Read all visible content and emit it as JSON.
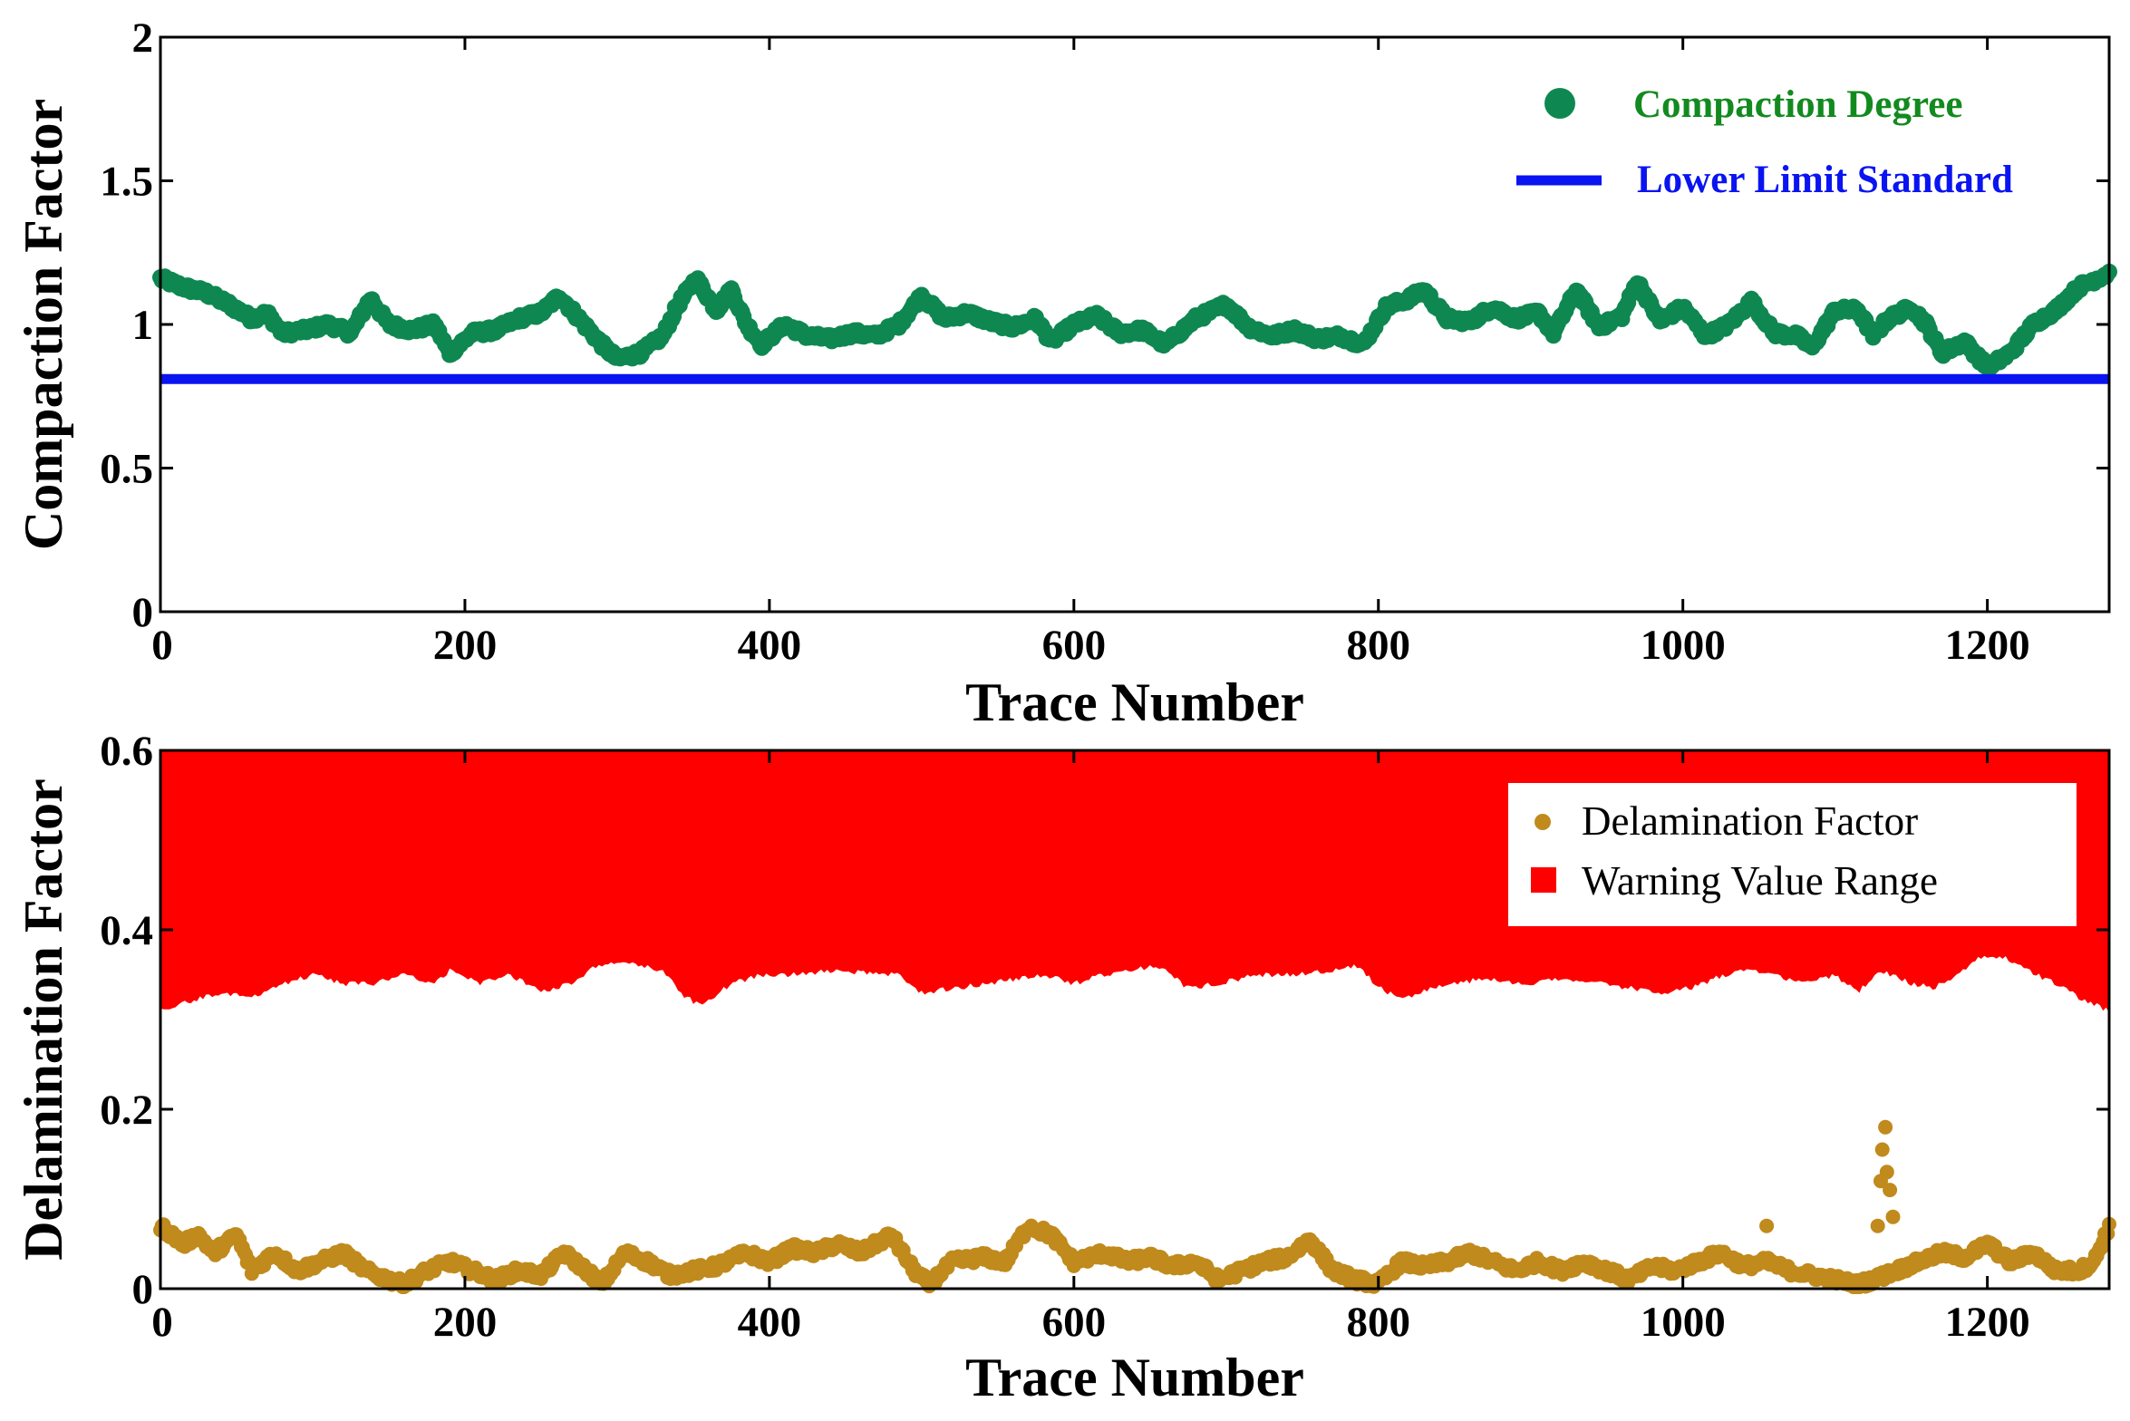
{
  "colors": {
    "compaction": "#0e8850",
    "lower_limit": "#0a14f0",
    "delamination": "#c08a1c",
    "warning": "#ff0000",
    "axis": "#000000",
    "legend_text_compaction": "#138a1f"
  },
  "chart_data": [
    {
      "type": "scatter",
      "title": "",
      "xlabel": "Trace Number",
      "ylabel": "Compaction Factor",
      "xlim": [
        0,
        1280
      ],
      "ylim": [
        0,
        2
      ],
      "xticks": [
        0,
        200,
        400,
        600,
        800,
        1000,
        1200
      ],
      "yticks": [
        0,
        0.5,
        1,
        1.5,
        2
      ],
      "ytick_labels": [
        "0",
        "0.5",
        "1",
        "1.5",
        "2"
      ],
      "legend_position": "top-right",
      "series": [
        {
          "name": "Compaction Degree",
          "kind": "scatter",
          "keypoints": [
            [
              0,
              1.16
            ],
            [
              15,
              1.13
            ],
            [
              30,
              1.11
            ],
            [
              45,
              1.07
            ],
            [
              60,
              1.02
            ],
            [
              70,
              1.04
            ],
            [
              80,
              0.97
            ],
            [
              95,
              0.98
            ],
            [
              110,
              1.0
            ],
            [
              125,
              0.97
            ],
            [
              138,
              1.09
            ],
            [
              150,
              1.0
            ],
            [
              165,
              0.98
            ],
            [
              180,
              1.0
            ],
            [
              190,
              0.9
            ],
            [
              205,
              0.97
            ],
            [
              220,
              0.98
            ],
            [
              235,
              1.02
            ],
            [
              250,
              1.04
            ],
            [
              262,
              1.1
            ],
            [
              275,
              1.02
            ],
            [
              290,
              0.93
            ],
            [
              300,
              0.88
            ],
            [
              315,
              0.9
            ],
            [
              330,
              0.96
            ],
            [
              340,
              1.07
            ],
            [
              352,
              1.16
            ],
            [
              365,
              1.05
            ],
            [
              375,
              1.12
            ],
            [
              385,
              1.0
            ],
            [
              395,
              0.93
            ],
            [
              410,
              1.0
            ],
            [
              425,
              0.96
            ],
            [
              440,
              0.95
            ],
            [
              455,
              0.97
            ],
            [
              470,
              0.96
            ],
            [
              485,
              1.0
            ],
            [
              500,
              1.1
            ],
            [
              515,
              1.02
            ],
            [
              530,
              1.04
            ],
            [
              545,
              1.01
            ],
            [
              560,
              0.99
            ],
            [
              575,
              1.02
            ],
            [
              585,
              0.94
            ],
            [
              600,
              1.0
            ],
            [
              615,
              1.03
            ],
            [
              630,
              0.97
            ],
            [
              645,
              0.98
            ],
            [
              660,
              0.93
            ],
            [
              680,
              1.02
            ],
            [
              700,
              1.07
            ],
            [
              715,
              0.99
            ],
            [
              730,
              0.96
            ],
            [
              745,
              0.98
            ],
            [
              760,
              0.95
            ],
            [
              775,
              0.96
            ],
            [
              790,
              0.93
            ],
            [
              805,
              1.06
            ],
            [
              820,
              1.09
            ],
            [
              830,
              1.12
            ],
            [
              845,
              1.02
            ],
            [
              860,
              1.01
            ],
            [
              875,
              1.06
            ],
            [
              890,
              1.02
            ],
            [
              905,
              1.04
            ],
            [
              915,
              0.97
            ],
            [
              930,
              1.12
            ],
            [
              945,
              0.99
            ],
            [
              960,
              1.03
            ],
            [
              970,
              1.15
            ],
            [
              985,
              1.01
            ],
            [
              1000,
              1.06
            ],
            [
              1015,
              0.96
            ],
            [
              1030,
              1.0
            ],
            [
              1045,
              1.08
            ],
            [
              1060,
              0.97
            ],
            [
              1075,
              0.96
            ],
            [
              1085,
              0.92
            ],
            [
              1100,
              1.05
            ],
            [
              1115,
              1.05
            ],
            [
              1125,
              0.96
            ],
            [
              1135,
              1.02
            ],
            [
              1150,
              1.06
            ],
            [
              1160,
              1.0
            ],
            [
              1170,
              0.9
            ],
            [
              1185,
              0.94
            ],
            [
              1200,
              0.85
            ],
            [
              1215,
              0.9
            ],
            [
              1230,
              1.0
            ],
            [
              1245,
              1.05
            ],
            [
              1260,
              1.13
            ],
            [
              1280,
              1.18
            ]
          ]
        },
        {
          "name": "Lower Limit Standard",
          "kind": "hline",
          "value": 0.81
        }
      ],
      "tick_labels_x": [
        "0",
        "200",
        "400",
        "600",
        "800",
        "1000",
        "1200"
      ]
    },
    {
      "type": "scatter",
      "title": "",
      "xlabel": "Trace Number",
      "ylabel": "Delamination Factor",
      "xlim": [
        0,
        1280
      ],
      "ylim": [
        0,
        0.6
      ],
      "xticks": [
        0,
        200,
        400,
        600,
        800,
        1000,
        1200
      ],
      "yticks": [
        0,
        0.2,
        0.4,
        0.6
      ],
      "ytick_labels": [
        "0",
        "0.2",
        "0.4",
        "0.6"
      ],
      "legend_position": "top-right",
      "series": [
        {
          "name": "Delamination Factor",
          "kind": "scatter",
          "keypoints": [
            [
              0,
              0.07
            ],
            [
              15,
              0.05
            ],
            [
              25,
              0.06
            ],
            [
              35,
              0.04
            ],
            [
              50,
              0.06
            ],
            [
              60,
              0.02
            ],
            [
              75,
              0.04
            ],
            [
              90,
              0.02
            ],
            [
              105,
              0.03
            ],
            [
              120,
              0.04
            ],
            [
              135,
              0.02
            ],
            [
              150,
              0.01
            ],
            [
              160,
              0.005
            ],
            [
              175,
              0.02
            ],
            [
              190,
              0.03
            ],
            [
              205,
              0.02
            ],
            [
              220,
              0.01
            ],
            [
              235,
              0.02
            ],
            [
              250,
              0.015
            ],
            [
              265,
              0.04
            ],
            [
              280,
              0.02
            ],
            [
              290,
              0.005
            ],
            [
              305,
              0.04
            ],
            [
              320,
              0.03
            ],
            [
              335,
              0.015
            ],
            [
              350,
              0.02
            ],
            [
              365,
              0.025
            ],
            [
              385,
              0.04
            ],
            [
              400,
              0.03
            ],
            [
              415,
              0.045
            ],
            [
              430,
              0.04
            ],
            [
              445,
              0.05
            ],
            [
              460,
              0.04
            ],
            [
              480,
              0.06
            ],
            [
              495,
              0.02
            ],
            [
              505,
              0.005
            ],
            [
              520,
              0.03
            ],
            [
              540,
              0.035
            ],
            [
              555,
              0.03
            ],
            [
              570,
              0.07
            ],
            [
              585,
              0.06
            ],
            [
              600,
              0.03
            ],
            [
              620,
              0.04
            ],
            [
              635,
              0.03
            ],
            [
              650,
              0.035
            ],
            [
              665,
              0.025
            ],
            [
              680,
              0.03
            ],
            [
              695,
              0.01
            ],
            [
              710,
              0.02
            ],
            [
              725,
              0.03
            ],
            [
              740,
              0.035
            ],
            [
              755,
              0.055
            ],
            [
              770,
              0.02
            ],
            [
              785,
              0.01
            ],
            [
              800,
              0.005
            ],
            [
              815,
              0.03
            ],
            [
              830,
              0.025
            ],
            [
              845,
              0.03
            ],
            [
              860,
              0.04
            ],
            [
              875,
              0.03
            ],
            [
              890,
              0.02
            ],
            [
              905,
              0.03
            ],
            [
              920,
              0.02
            ],
            [
              935,
              0.03
            ],
            [
              950,
              0.02
            ],
            [
              965,
              0.01
            ],
            [
              980,
              0.025
            ],
            [
              995,
              0.02
            ],
            [
              1010,
              0.03
            ],
            [
              1025,
              0.04
            ],
            [
              1040,
              0.025
            ],
            [
              1055,
              0.03
            ],
            [
              1070,
              0.02
            ],
            [
              1085,
              0.015
            ],
            [
              1100,
              0.01
            ],
            [
              1115,
              0.005
            ],
            [
              1125,
              0.01
            ],
            [
              1140,
              0.02
            ],
            [
              1155,
              0.03
            ],
            [
              1170,
              0.04
            ],
            [
              1185,
              0.035
            ],
            [
              1200,
              0.05
            ],
            [
              1215,
              0.03
            ],
            [
              1230,
              0.04
            ],
            [
              1245,
              0.02
            ],
            [
              1260,
              0.02
            ],
            [
              1270,
              0.03
            ],
            [
              1280,
              0.07
            ]
          ],
          "outliers": [
            [
              1055,
              0.07
            ],
            [
              1128,
              0.07
            ],
            [
              1130,
              0.12
            ],
            [
              1131,
              0.155
            ],
            [
              1133,
              0.18
            ],
            [
              1134,
              0.13
            ],
            [
              1136,
              0.11
            ],
            [
              1138,
              0.08
            ]
          ]
        },
        {
          "name": "Warning Value Range",
          "kind": "area-top",
          "upper": 0.6,
          "lower_keypoints": [
            [
              0,
              0.31
            ],
            [
              20,
              0.32
            ],
            [
              40,
              0.33
            ],
            [
              60,
              0.325
            ],
            [
              80,
              0.34
            ],
            [
              100,
              0.35
            ],
            [
              120,
              0.34
            ],
            [
              140,
              0.34
            ],
            [
              160,
              0.35
            ],
            [
              180,
              0.34
            ],
            [
              190,
              0.355
            ],
            [
              210,
              0.34
            ],
            [
              230,
              0.35
            ],
            [
              250,
              0.33
            ],
            [
              270,
              0.34
            ],
            [
              285,
              0.36
            ],
            [
              300,
              0.365
            ],
            [
              315,
              0.36
            ],
            [
              330,
              0.355
            ],
            [
              345,
              0.325
            ],
            [
              355,
              0.315
            ],
            [
              375,
              0.34
            ],
            [
              395,
              0.35
            ],
            [
              420,
              0.35
            ],
            [
              445,
              0.355
            ],
            [
              470,
              0.35
            ],
            [
              485,
              0.35
            ],
            [
              500,
              0.33
            ],
            [
              520,
              0.335
            ],
            [
              545,
              0.34
            ],
            [
              560,
              0.345
            ],
            [
              580,
              0.35
            ],
            [
              600,
              0.34
            ],
            [
              620,
              0.35
            ],
            [
              640,
              0.355
            ],
            [
              655,
              0.36
            ],
            [
              675,
              0.335
            ],
            [
              695,
              0.34
            ],
            [
              720,
              0.35
            ],
            [
              745,
              0.35
            ],
            [
              770,
              0.355
            ],
            [
              785,
              0.36
            ],
            [
              805,
              0.33
            ],
            [
              820,
              0.325
            ],
            [
              845,
              0.34
            ],
            [
              870,
              0.345
            ],
            [
              895,
              0.34
            ],
            [
              920,
              0.345
            ],
            [
              945,
              0.34
            ],
            [
              965,
              0.335
            ],
            [
              985,
              0.33
            ],
            [
              1005,
              0.335
            ],
            [
              1020,
              0.345
            ],
            [
              1040,
              0.355
            ],
            [
              1060,
              0.35
            ],
            [
              1080,
              0.34
            ],
            [
              1100,
              0.35
            ],
            [
              1115,
              0.33
            ],
            [
              1130,
              0.355
            ],
            [
              1150,
              0.34
            ],
            [
              1165,
              0.335
            ],
            [
              1180,
              0.35
            ],
            [
              1195,
              0.37
            ],
            [
              1210,
              0.37
            ],
            [
              1225,
              0.355
            ],
            [
              1245,
              0.34
            ],
            [
              1265,
              0.32
            ],
            [
              1280,
              0.31
            ]
          ]
        }
      ],
      "tick_labels_x": [
        "0",
        "200",
        "400",
        "600",
        "800",
        "1000",
        "1200"
      ]
    }
  ]
}
